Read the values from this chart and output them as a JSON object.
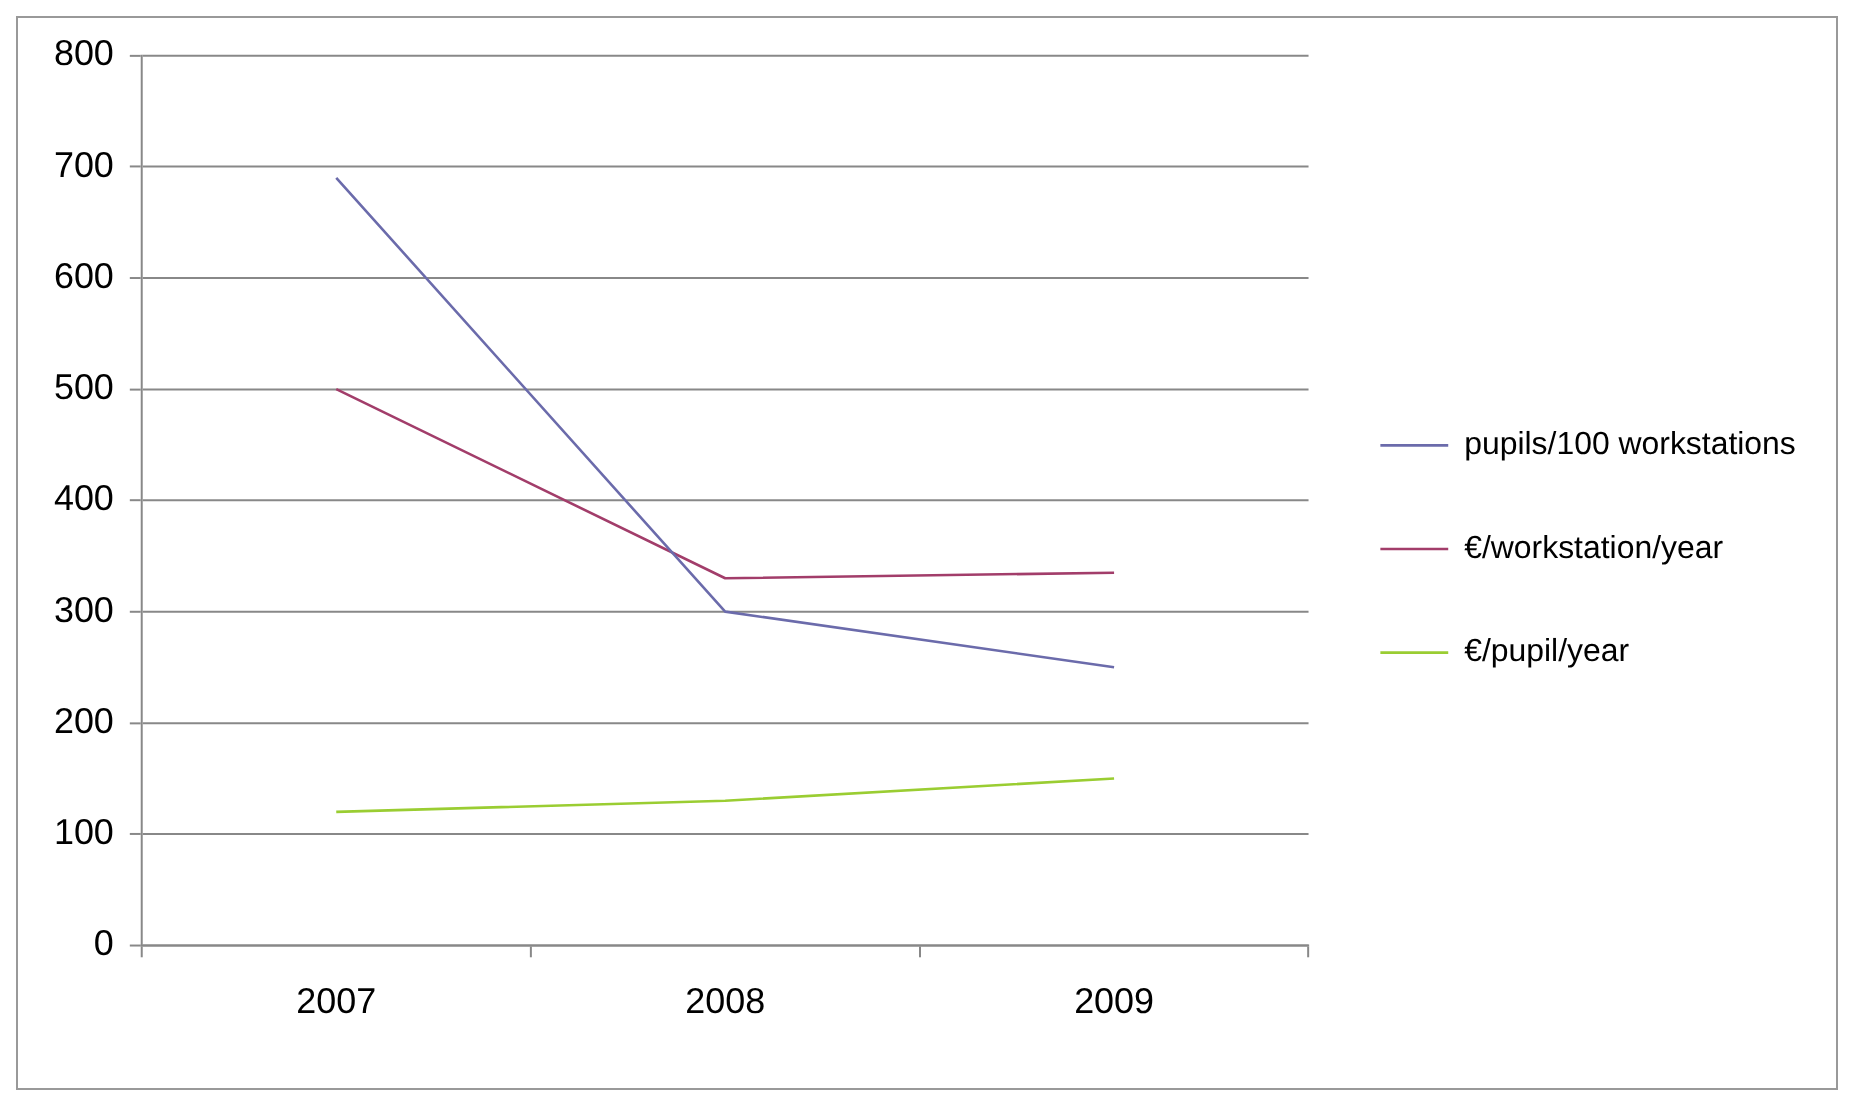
{
  "chart_data": {
    "type": "line",
    "categories": [
      "2007",
      "2008",
      "2009"
    ],
    "series": [
      {
        "name": "pupils/100 workstations",
        "color": "#6b6bab",
        "values": [
          690,
          300,
          250
        ]
      },
      {
        "name": "€/workstation/year",
        "color": "#a23d6a",
        "values": [
          500,
          330,
          335
        ]
      },
      {
        "name": "€/pupil/year",
        "color": "#9acd32",
        "values": [
          120,
          130,
          150
        ]
      }
    ],
    "ylim": [
      0,
      800
    ],
    "yticks": [
      0,
      100,
      200,
      300,
      400,
      500,
      600,
      700,
      800
    ],
    "grid": "y",
    "legend": "right",
    "marker": "none",
    "line_style": "solid"
  }
}
